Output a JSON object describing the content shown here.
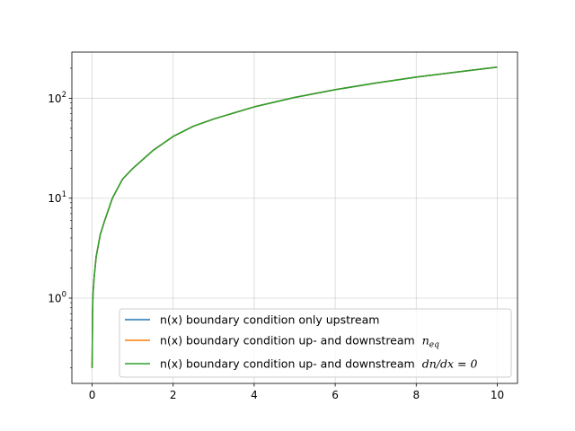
{
  "chart_data": {
    "type": "line",
    "title": "",
    "xlabel": "",
    "ylabel": "",
    "xlim": [
      -0.5,
      10.5
    ],
    "ylim": [
      0.14,
      290
    ],
    "yscale": "log",
    "grid": true,
    "legend_position": "lower-right",
    "x_ticks": [
      "0",
      "2",
      "4",
      "6",
      "8",
      "10"
    ],
    "y_ticks": [
      {
        "base": "10",
        "exp": "0"
      },
      {
        "base": "10",
        "exp": "1"
      },
      {
        "base": "10",
        "exp": "2"
      }
    ],
    "x": [
      0,
      0.01,
      0.02,
      0.05,
      0.1,
      0.2,
      0.3,
      0.5,
      0.75,
      1,
      1.5,
      2,
      2.5,
      3,
      4,
      5,
      6,
      7,
      8,
      9,
      10
    ],
    "series": [
      {
        "name": "n(x) boundary condition only upstream",
        "color": "#1f77b4",
        "values": [
          0.2,
          0.7,
          1.07,
          1.62,
          2.6,
          4.3,
          5.8,
          10.0,
          15.5,
          19.8,
          30.0,
          41.5,
          52.5,
          62.0,
          82.0,
          102.0,
          122.0,
          142.0,
          163.0,
          183.0,
          205.0
        ]
      },
      {
        "name": "n(x) boundary condition up- and downstream",
        "name_math": "n",
        "name_math_sub": "eq",
        "color": "#ff7f0e",
        "values": [
          0.2,
          0.7,
          1.07,
          1.62,
          2.6,
          4.3,
          5.8,
          10.0,
          15.5,
          19.8,
          30.0,
          41.5,
          52.5,
          62.0,
          82.0,
          102.0,
          122.0,
          142.0,
          163.0,
          183.0,
          205.0
        ]
      },
      {
        "name": "n(x) boundary condition up- and downstream",
        "name_math": "dn/dx = 0",
        "color": "#2ca02c",
        "values": [
          0.2,
          0.7,
          1.07,
          1.62,
          2.6,
          4.3,
          5.8,
          10.0,
          15.5,
          19.8,
          30.0,
          41.5,
          52.5,
          62.0,
          82.0,
          102.0,
          122.0,
          142.0,
          163.0,
          183.0,
          205.0
        ]
      }
    ]
  }
}
